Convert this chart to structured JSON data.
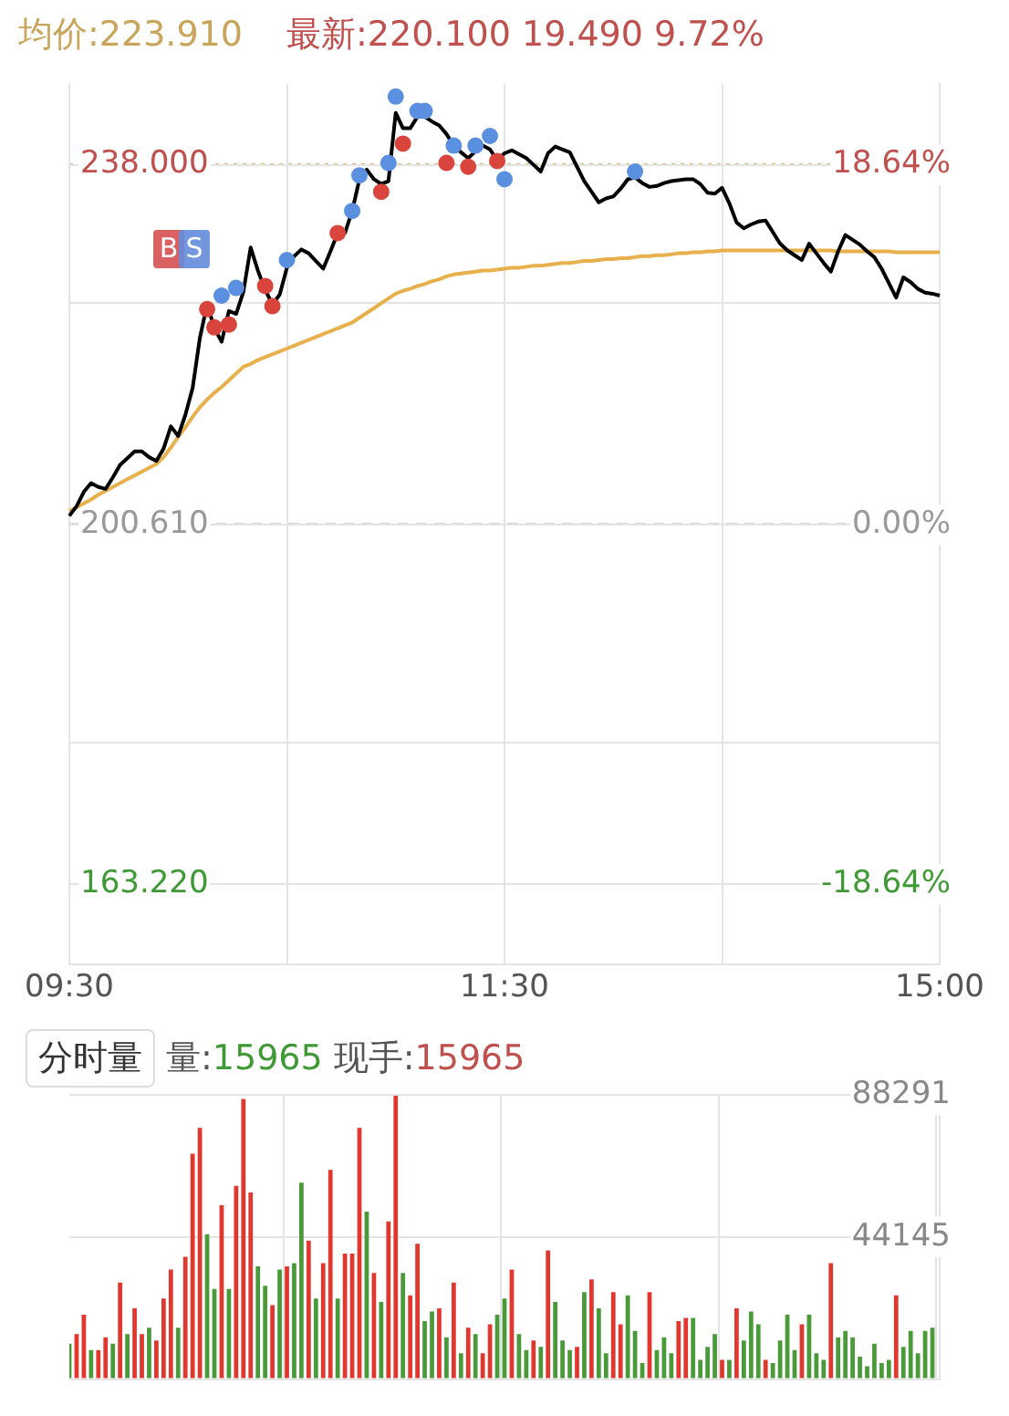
{
  "chart_data": [
    {
      "type": "line",
      "title": "均价:223.910",
      "subtitle": "最新:220.100 19.490 9.72%",
      "categories": [
        "09:30",
        null,
        null,
        null,
        null,
        null,
        null,
        null,
        null,
        null,
        null,
        null,
        null,
        null,
        null,
        null,
        null,
        null,
        null,
        null,
        null,
        null,
        null,
        null,
        null,
        null,
        null,
        null,
        null,
        null,
        null,
        null,
        null,
        null,
        null,
        null,
        null,
        null,
        null,
        null,
        null,
        null,
        null,
        null,
        null,
        null,
        null,
        null,
        null,
        null,
        null,
        null,
        null,
        null,
        null,
        null,
        null,
        null,
        null,
        null,
        "11:30",
        null,
        null,
        null,
        null,
        null,
        null,
        null,
        null,
        null,
        null,
        null,
        null,
        null,
        null,
        null,
        null,
        null,
        null,
        null,
        null,
        null,
        null,
        null,
        null,
        null,
        null,
        null,
        null,
        null,
        null,
        null,
        null,
        null,
        null,
        null,
        null,
        null,
        null,
        null,
        null,
        null,
        null,
        null,
        null,
        null,
        null,
        null,
        null,
        null,
        null,
        null,
        null,
        null,
        null,
        null,
        null,
        null,
        null,
        null,
        "15:00"
      ],
      "ylim": [
        154.85,
        246.37
      ],
      "yticks": [
        {
          "value": 163.22,
          "label": "163.220"
        },
        {
          "value": 177.92,
          "label": null
        },
        {
          "value": 200.61,
          "label": "200.610"
        },
        {
          "value": 223.68,
          "label": null
        },
        {
          "value": 238,
          "label": "238.000"
        }
      ],
      "y2lim": [
        -22.81,
        22.81
      ],
      "y2ticks": [
        {
          "value": -18.64,
          "label": "-18.64%"
        },
        {
          "value": 0,
          "label": "0.00%"
        },
        {
          "value": 18.64,
          "label": "18.64%"
        }
      ],
      "grid": true,
      "legend": false,
      "marker": "none",
      "line_style": "solid",
      "ref_lines": [
        {
          "axis": "y",
          "value": 238,
          "color": "#d4a04c",
          "line_style": "dotted"
        },
        {
          "axis": "y",
          "value": 200.61,
          "color": "#aaaaaa",
          "line_style": "dashed"
        }
      ],
      "annotations": [
        "B",
        "S"
      ],
      "series": [
        {
          "type": "line",
          "color": "#000000",
          "values": [
            201.5,
            202.5,
            204,
            204.9,
            204.5,
            204.3,
            205.5,
            206.8,
            207.5,
            208.2,
            208.2,
            207.6,
            207.2,
            208.5,
            210.8,
            209.8,
            212,
            214.8,
            220,
            223.5,
            221,
            219.6,
            222.8,
            222.5,
            224.8,
            229.4,
            227,
            225,
            223.5,
            224.5,
            227.3,
            228.5,
            229.2,
            228.8,
            228,
            227.2,
            229,
            230.9,
            230.9,
            233.2,
            236.5,
            237.5,
            236.5,
            236.0,
            236.3,
            243.4,
            241.8,
            241.8,
            243,
            243,
            242.5,
            242.1,
            241.2,
            240.0,
            239.3,
            238.7,
            239.4,
            240,
            239.6,
            238.5,
            239.2,
            239.5,
            239.1,
            238.7,
            238,
            237.3,
            239.2,
            239.9,
            239.6,
            239.3,
            237.8,
            236.3,
            235.2,
            234.1,
            234.5,
            234.7,
            235.5,
            236.5,
            236.7,
            236.1,
            235.7,
            235.8,
            236.1,
            236.3,
            236.4,
            236.5,
            236.5,
            236,
            235.1,
            235,
            235.6,
            234,
            232,
            231.4,
            231.8,
            232.1,
            232.2,
            231,
            229.8,
            229.1,
            228.6,
            228.1,
            229.8,
            228.8,
            227.8,
            226.9,
            229,
            230.7,
            230.2,
            229.7,
            229,
            228.4,
            227.2,
            225.7,
            224.2,
            226.3,
            225.8,
            225.1,
            224.7,
            224.6,
            224.4
          ]
        },
        {
          "type": "line",
          "color": "#e8b04c",
          "values": [
            202.0,
            202.4,
            202.8,
            203.2,
            203.7,
            204.1,
            204.5,
            204.9,
            205.3,
            205.7,
            206.1,
            206.5,
            206.9,
            207.6,
            208.6,
            209.7,
            210.7,
            211.8,
            212.8,
            213.6,
            214.3,
            214.9,
            215.6,
            216.3,
            217.0,
            217.3,
            217.7,
            218.0,
            218.3,
            218.6,
            218.9,
            219.2,
            219.5,
            219.8,
            220.1,
            220.4,
            220.7,
            221.0,
            221.3,
            221.6,
            222.1,
            222.6,
            223.1,
            223.6,
            224.1,
            224.6,
            224.9,
            225.1,
            225.4,
            225.6,
            225.9,
            226.1,
            226.4,
            226.6,
            226.7,
            226.8,
            226.9,
            227.0,
            227.0,
            227.1,
            227.2,
            227.3,
            227.3,
            227.4,
            227.5,
            227.5,
            227.6,
            227.7,
            227.8,
            227.8,
            227.9,
            228.0,
            228.0,
            228.1,
            228.2,
            228.2,
            228.3,
            228.3,
            228.4,
            228.5,
            228.5,
            228.6,
            228.6,
            228.7,
            228.8,
            228.8,
            228.9,
            228.9,
            229.0,
            229.0,
            229.1,
            229.1,
            229.1,
            229.1,
            229.1,
            229.1,
            229.1,
            229.1,
            229.1,
            229.1,
            229.1,
            229.1,
            229.1,
            229.1,
            229.1,
            229.1,
            229.0,
            229.0,
            229.0,
            229.0,
            229.0,
            229.0,
            229.0,
            229.0,
            228.9,
            228.9,
            228.9,
            228.9,
            228.9,
            228.9,
            228.9
          ]
        },
        {
          "type": "scatter",
          "color": "#5b8fe0",
          "marker": "circle",
          "values": [
            null,
            null,
            null,
            null,
            null,
            null,
            null,
            null,
            null,
            null,
            null,
            null,
            null,
            null,
            null,
            null,
            null,
            null,
            null,
            null,
            null,
            224.4,
            null,
            225.2,
            null,
            null,
            null,
            null,
            null,
            null,
            228.1,
            null,
            null,
            null,
            null,
            null,
            null,
            null,
            null,
            233.2,
            236.9,
            null,
            null,
            null,
            238.2,
            245.1,
            null,
            null,
            243.6,
            243.6,
            null,
            null,
            null,
            240.0,
            null,
            null,
            240.0,
            null,
            241.0,
            null,
            236.5,
            null,
            null,
            null,
            null,
            null,
            null,
            null,
            null,
            null,
            null,
            null,
            null,
            null,
            null,
            null,
            null,
            null,
            237.3,
            null,
            null,
            null,
            null,
            null,
            null,
            null,
            null,
            null,
            null,
            null,
            null,
            null,
            null,
            null,
            null,
            null,
            null,
            null,
            null,
            null,
            null,
            null,
            null,
            null,
            null,
            null,
            null,
            null,
            null,
            null,
            null,
            null,
            null,
            null,
            null,
            null,
            null,
            null,
            null,
            null,
            null
          ]
        },
        {
          "type": "scatter",
          "color": "#d9453c",
          "marker": "circle",
          "values": [
            null,
            null,
            null,
            null,
            null,
            null,
            null,
            null,
            null,
            null,
            null,
            null,
            null,
            null,
            null,
            null,
            null,
            null,
            null,
            223.0,
            221.1,
            null,
            221.4,
            null,
            null,
            null,
            null,
            225.4,
            223.3,
            null,
            null,
            null,
            null,
            null,
            null,
            null,
            null,
            230.9,
            null,
            null,
            null,
            null,
            null,
            235.2,
            null,
            null,
            240.2,
            null,
            null,
            null,
            null,
            null,
            238.2,
            null,
            null,
            237.8,
            null,
            null,
            null,
            238.4,
            null,
            null,
            null,
            null,
            null,
            null,
            null,
            null,
            null,
            null,
            null,
            null,
            null,
            null,
            null,
            null,
            null,
            null,
            null,
            null,
            null,
            null,
            null,
            null,
            null,
            null,
            null,
            null,
            null,
            null,
            null,
            null,
            null,
            null,
            null,
            null,
            null,
            null,
            null,
            null,
            null,
            null,
            null,
            null,
            null,
            null,
            null,
            null,
            null,
            null,
            null,
            null,
            null,
            null,
            null,
            null,
            null,
            null,
            null,
            null,
            null
          ]
        }
      ]
    },
    {
      "type": "bar",
      "annotations": [
        "分时量",
        "量:15965",
        "现手:15965"
      ],
      "categories": [
        null,
        null,
        null,
        null,
        null,
        null,
        null,
        null,
        null,
        null,
        null,
        null,
        null,
        null,
        null,
        null,
        null,
        null,
        null,
        null,
        null,
        null,
        null,
        null,
        null,
        null,
        null,
        null,
        null,
        null,
        null,
        null,
        null,
        null,
        null,
        null,
        null,
        null,
        null,
        null,
        null,
        null,
        null,
        null,
        null,
        null,
        null,
        null,
        null,
        null,
        null,
        null,
        null,
        null,
        null,
        null,
        null,
        null,
        null,
        null,
        null,
        null,
        null,
        null,
        null,
        null,
        null,
        null,
        null,
        null,
        null,
        null,
        null,
        null,
        null,
        null,
        null,
        null,
        null,
        null,
        null,
        null,
        null,
        null,
        null,
        null,
        null,
        null,
        null,
        null,
        null,
        null,
        null,
        null,
        null,
        null,
        null,
        null,
        null,
        null,
        null,
        null,
        null,
        null,
        null,
        null,
        null,
        null,
        null,
        null,
        null,
        null,
        null,
        null,
        null,
        null,
        null,
        null,
        null,
        null,
        null
      ],
      "ylim": [
        0,
        88291
      ],
      "yticks": [
        {
          "value": 0,
          "label": null
        },
        44145,
        88291
      ],
      "grid": true,
      "legend": false,
      "tick_labels": "y",
      "values": [
        11000,
        14000,
        20000,
        9000,
        9000,
        13000,
        11000,
        30000,
        14000,
        22000,
        14000,
        16000,
        12000,
        25000,
        34000,
        16000,
        38000,
        70000,
        78000,
        45000,
        28000,
        54000,
        28000,
        60000,
        87000,
        58000,
        35000,
        29000,
        23000,
        34000,
        35000,
        36000,
        61000,
        43000,
        25000,
        36000,
        65000,
        25000,
        39000,
        39000,
        78000,
        52000,
        33000,
        24000,
        49000,
        88000,
        33000,
        26000,
        42000,
        18000,
        21000,
        22000,
        13000,
        30000,
        8000,
        16000,
        14000,
        8000,
        17000,
        20000,
        25000,
        34000,
        14000,
        9000,
        12000,
        10000,
        40000,
        24000,
        12000,
        9000,
        10000,
        27000,
        31000,
        22000,
        8000,
        27000,
        17000,
        26000,
        15000,
        5000,
        27000,
        9000,
        13000,
        8000,
        18000,
        19000,
        19000,
        6000,
        10000,
        14000,
        6000,
        6000,
        22000,
        12000,
        21000,
        17000,
        6000,
        5000,
        12000,
        20000,
        9000,
        17000,
        20000,
        8000,
        6000,
        36000,
        13000,
        15000,
        13000,
        7000,
        4000,
        11000,
        5000,
        6000,
        26000,
        10000,
        15000,
        8000,
        15000,
        16000,
        null
      ],
      "colors": [
        "#4a9a3a",
        "#e0382e",
        "#e0382e",
        "#4a9a3a",
        "#e0382e",
        "#e0382e",
        "#4a9a3a",
        "#e0382e",
        "#4a9a3a",
        "#e0382e",
        "#e0382e",
        "#4a9a3a",
        "#e0382e",
        "#e0382e",
        "#e0382e",
        "#4a9a3a",
        "#e0382e",
        "#e0382e",
        "#e0382e",
        "#4a9a3a",
        "#4a9a3a",
        "#e0382e",
        "#4a9a3a",
        "#e0382e",
        "#e0382e",
        "#e0382e",
        "#4a9a3a",
        "#4a9a3a",
        "#e0382e",
        "#4a9a3a",
        "#e0382e",
        "#4a9a3a",
        "#4a9a3a",
        "#e0382e",
        "#4a9a3a",
        "#e0382e",
        "#e0382e",
        "#4a9a3a",
        "#e0382e",
        "#e0382e",
        "#e0382e",
        "#4a9a3a",
        "#e0382e",
        "#4a9a3a",
        "#e0382e",
        "#e0382e",
        "#4a9a3a",
        "#e0382e",
        "#e0382e",
        "#4a9a3a",
        "#4a9a3a",
        "#e0382e",
        "#4a9a3a",
        "#e0382e",
        "#4a9a3a",
        "#e0382e",
        "#4a9a3a",
        "#e0382e",
        "#e0382e",
        "#4a9a3a",
        "#4a9a3a",
        "#e0382e",
        "#4a9a3a",
        "#4a9a3a",
        "#e0382e",
        "#4a9a3a",
        "#e0382e",
        "#4a9a3a",
        "#4a9a3a",
        "#4a9a3a",
        "#e0382e",
        "#4a9a3a",
        "#e0382e",
        "#4a9a3a",
        "#4a9a3a",
        "#e0382e",
        "#e0382e",
        "#4a9a3a",
        "#4a9a3a",
        "#4a9a3a",
        "#e0382e",
        "#4a9a3a",
        "#4a9a3a",
        "#4a9a3a",
        "#e0382e",
        "#e0382e",
        "#4a9a3a",
        "#4a9a3a",
        "#4a9a3a",
        "#4a9a3a",
        "#e0382e",
        "#4a9a3a",
        "#e0382e",
        "#4a9a3a",
        "#4a9a3a",
        "#4a9a3a",
        "#e0382e",
        "#4a9a3a",
        "#4a9a3a",
        "#4a9a3a",
        "#4a9a3a",
        "#e0382e",
        "#4a9a3a",
        "#4a9a3a",
        "#4a9a3a",
        "#e0382e",
        "#4a9a3a",
        "#4a9a3a",
        "#4a9a3a",
        "#4a9a3a",
        "#4a9a3a",
        "#4a9a3a",
        "#4a9a3a",
        "#4a9a3a",
        "#e0382e",
        "#4a9a3a",
        "#4a9a3a",
        "#4a9a3a",
        "#4a9a3a",
        "#4a9a3a",
        "#4a9a3a"
      ]
    }
  ]
}
